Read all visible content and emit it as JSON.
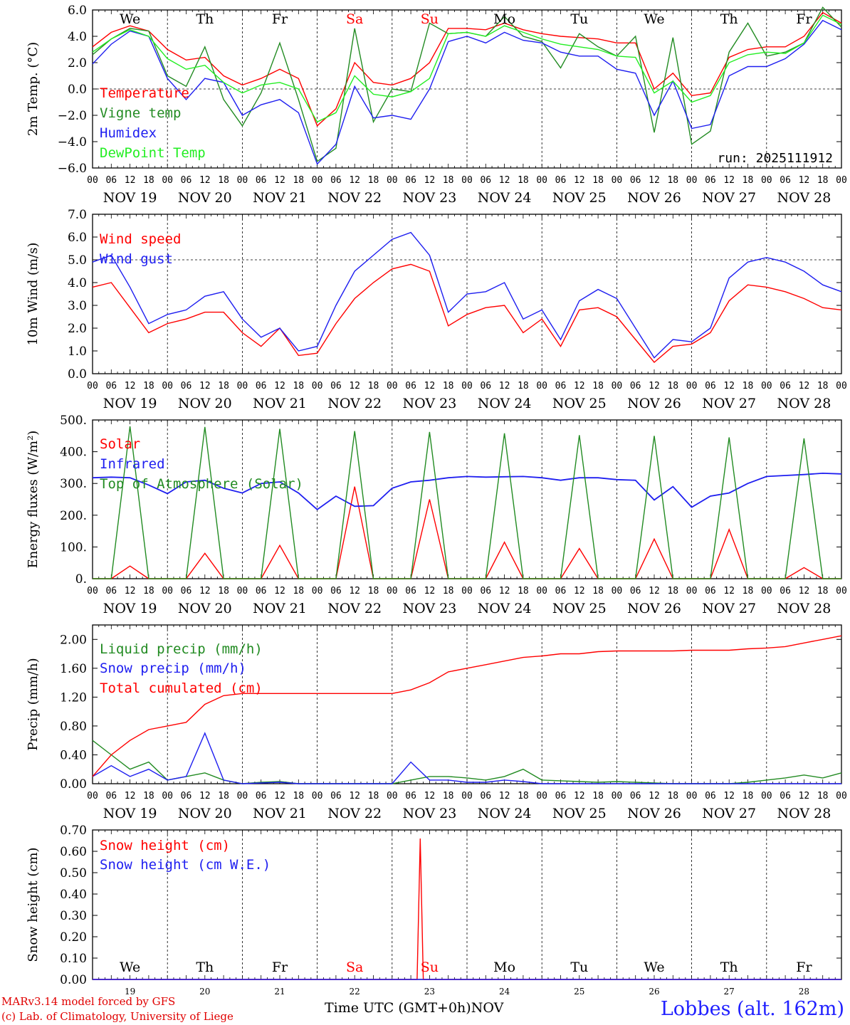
{
  "colors": {
    "red": "#ff0000",
    "green": "#228b22",
    "blue": "#1e1ef0",
    "lightgreen": "#22ee22"
  },
  "days": {
    "names": [
      "We",
      "Th",
      "Fr",
      "Sa",
      "Su",
      "Mo",
      "Tu",
      "We",
      "Th",
      "Fr"
    ],
    "weekend": [
      false,
      false,
      false,
      true,
      true,
      false,
      false,
      false,
      false,
      false
    ],
    "dates": [
      "NOV 19",
      "NOV 20",
      "NOV 21",
      "NOV 22",
      "NOV 23",
      "NOV 24",
      "NOV 25",
      "NOV 26",
      "NOV 27",
      "NOV 28"
    ],
    "numbers": [
      "19",
      "20",
      "21",
      "22",
      "23",
      "24",
      "25",
      "26",
      "27",
      "28"
    ],
    "hour_ticks": [
      "00",
      "06",
      "12",
      "18"
    ],
    "final_tick": "00"
  },
  "footer": {
    "model": "MARv3.14 model forced by GFS",
    "copyright": "(c) Lab. of Climatology, University of Liege",
    "time_label": "Time UTC (GMT+0h)",
    "month": "NOV",
    "station": "Lobbes (alt. 162m)"
  },
  "chart_data": [
    {
      "type": "line",
      "id": "temp",
      "ylabel": "2m Temp. (°C)",
      "ylim": [
        -6,
        6
      ],
      "yticks": [
        -6,
        -4,
        -2,
        0,
        2,
        4,
        6
      ],
      "ytick_labels": [
        "−6.0",
        "−4.0",
        "−2.0",
        "0.0",
        "2.0",
        "4.0",
        "6.0"
      ],
      "zero_line": 0,
      "annotation": "run: 2025111912",
      "x": [
        0,
        6,
        12,
        18,
        24,
        30,
        36,
        42,
        48,
        54,
        60,
        66,
        72,
        78,
        84,
        90,
        96,
        102,
        108,
        114,
        120,
        126,
        132,
        138,
        144,
        150,
        156,
        162,
        168,
        174,
        180,
        186,
        192,
        198,
        204,
        210,
        216,
        222,
        228,
        234,
        240
      ],
      "series": [
        {
          "name": "Temperature",
          "color": "#ff0000",
          "values": [
            3.2,
            4.3,
            4.8,
            4.4,
            3.0,
            2.2,
            2.4,
            1.0,
            0.3,
            0.8,
            1.5,
            0.8,
            -2.8,
            -1.5,
            2.0,
            0.5,
            0.3,
            0.8,
            2.0,
            4.6,
            4.6,
            4.5,
            5.0,
            4.5,
            4.2,
            4.0,
            3.9,
            3.8,
            3.5,
            3.5,
            0.0,
            1.2,
            -0.5,
            -0.3,
            2.4,
            3.0,
            3.2,
            3.2,
            4.0,
            5.8,
            5.0
          ]
        },
        {
          "name": "Vigne temp",
          "color": "#228b22",
          "values": [
            2.6,
            3.8,
            4.6,
            4.4,
            1.0,
            0.2,
            3.2,
            -0.8,
            -2.8,
            -0.3,
            3.5,
            -0.8,
            -5.5,
            -4.5,
            4.6,
            -2.5,
            0.0,
            -0.2,
            5.0,
            4.2,
            4.3,
            4.0,
            5.5,
            4.0,
            3.6,
            1.6,
            4.2,
            3.2,
            2.5,
            4.0,
            -3.3,
            3.9,
            -4.2,
            -3.2,
            2.8,
            5.0,
            2.5,
            2.8,
            3.5,
            6.2,
            4.7
          ]
        },
        {
          "name": "Humidex",
          "color": "#1e1ef0",
          "values": [
            1.9,
            3.4,
            4.4,
            4.0,
            0.8,
            -0.8,
            0.8,
            0.5,
            -2.0,
            -1.2,
            -0.8,
            -1.8,
            -5.7,
            -4.2,
            0.2,
            -2.2,
            -2.0,
            -2.3,
            0.0,
            3.6,
            4.0,
            3.5,
            4.3,
            3.7,
            3.5,
            2.8,
            2.5,
            2.5,
            1.5,
            1.2,
            -2.0,
            0.6,
            -3.0,
            -2.7,
            1.0,
            1.7,
            1.7,
            2.3,
            3.4,
            5.2,
            4.5
          ]
        },
        {
          "name": "DewPoint Temp",
          "color": "#22ee22",
          "values": [
            2.8,
            3.8,
            4.5,
            4.0,
            2.3,
            1.5,
            1.8,
            0.5,
            -0.3,
            0.3,
            0.5,
            0.0,
            -2.5,
            -1.8,
            1.0,
            -0.4,
            -0.6,
            -0.2,
            0.8,
            4.2,
            4.3,
            4.0,
            4.8,
            4.3,
            3.8,
            3.4,
            3.2,
            3.0,
            2.5,
            2.4,
            -0.3,
            0.6,
            -1.0,
            -0.5,
            2.0,
            2.6,
            2.8,
            2.7,
            3.5,
            5.6,
            4.9
          ]
        }
      ]
    },
    {
      "type": "line",
      "id": "wind",
      "ylabel": "10m Wind (m/s)",
      "ylim": [
        0,
        7
      ],
      "yticks": [
        0,
        1,
        2,
        3,
        4,
        5,
        6,
        7
      ],
      "ytick_labels": [
        "0.0",
        "1.0",
        "2.0",
        "3.0",
        "4.0",
        "5.0",
        "6.0",
        "7.0"
      ],
      "zero_line": 5,
      "x": [
        0,
        6,
        12,
        18,
        24,
        30,
        36,
        42,
        48,
        54,
        60,
        66,
        72,
        78,
        84,
        90,
        96,
        102,
        108,
        114,
        120,
        126,
        132,
        138,
        144,
        150,
        156,
        162,
        168,
        174,
        180,
        186,
        192,
        198,
        204,
        210,
        216,
        222,
        228,
        234,
        240
      ],
      "series": [
        {
          "name": "Wind speed",
          "color": "#ff0000",
          "values": [
            3.8,
            4.0,
            2.9,
            1.8,
            2.2,
            2.4,
            2.7,
            2.7,
            1.8,
            1.2,
            2.0,
            0.8,
            0.9,
            2.2,
            3.3,
            4.0,
            4.6,
            4.8,
            4.5,
            2.1,
            2.6,
            2.9,
            3.0,
            1.8,
            2.4,
            1.2,
            2.8,
            2.9,
            2.5,
            1.5,
            0.5,
            1.2,
            1.3,
            1.8,
            3.2,
            3.9,
            3.8,
            3.6,
            3.3,
            2.9,
            2.8
          ]
        },
        {
          "name": "Wind gust",
          "color": "#1e1ef0",
          "values": [
            4.9,
            5.2,
            3.8,
            2.2,
            2.6,
            2.8,
            3.4,
            3.6,
            2.4,
            1.6,
            2.0,
            1.0,
            1.2,
            3.0,
            4.5,
            5.2,
            5.9,
            6.2,
            5.2,
            2.7,
            3.5,
            3.6,
            4.0,
            2.4,
            2.8,
            1.5,
            3.2,
            3.7,
            3.3,
            2.0,
            0.7,
            1.5,
            1.4,
            2.0,
            4.2,
            4.9,
            5.1,
            4.9,
            4.5,
            3.9,
            3.6
          ]
        }
      ]
    },
    {
      "type": "line",
      "id": "energy",
      "ylabel": "Energy fluxes (W/m²)",
      "ylim": [
        0,
        500
      ],
      "yticks": [
        0,
        100,
        200,
        300,
        400,
        500
      ],
      "ytick_labels": [
        "0.",
        "100.",
        "200.",
        "300.",
        "400.",
        "500."
      ],
      "x": [
        0,
        6,
        12,
        18,
        24,
        30,
        36,
        42,
        48,
        54,
        60,
        66,
        72,
        78,
        84,
        90,
        96,
        102,
        108,
        114,
        120,
        126,
        132,
        138,
        144,
        150,
        156,
        162,
        168,
        174,
        180,
        186,
        192,
        198,
        204,
        210,
        216,
        222,
        228,
        234,
        240
      ],
      "series": [
        {
          "name": "Solar",
          "color": "#ff0000",
          "values": [
            0,
            0,
            40,
            0,
            0,
            0,
            80,
            0,
            0,
            0,
            105,
            0,
            0,
            0,
            290,
            0,
            0,
            0,
            250,
            0,
            0,
            0,
            115,
            0,
            0,
            0,
            95,
            0,
            0,
            0,
            125,
            0,
            0,
            0,
            155,
            0,
            0,
            0,
            35,
            0,
            0
          ]
        },
        {
          "name": "Infrared",
          "color": "#1e1ef0",
          "values": [
            318,
            320,
            318,
            295,
            268,
            305,
            310,
            285,
            270,
            300,
            305,
            270,
            218,
            260,
            228,
            230,
            285,
            305,
            310,
            318,
            322,
            320,
            321,
            322,
            318,
            310,
            318,
            318,
            312,
            310,
            248,
            290,
            225,
            260,
            270,
            300,
            322,
            325,
            328,
            332,
            330
          ]
        },
        {
          "name": "Top of Atmosphere (Solar)",
          "color": "#228b22",
          "values": [
            0,
            0,
            480,
            0,
            0,
            0,
            478,
            0,
            0,
            0,
            472,
            0,
            0,
            0,
            465,
            0,
            0,
            0,
            462,
            0,
            0,
            0,
            458,
            0,
            0,
            0,
            452,
            0,
            0,
            0,
            450,
            0,
            0,
            0,
            445,
            0,
            0,
            0,
            442,
            0,
            0
          ]
        }
      ]
    },
    {
      "type": "line",
      "id": "precip",
      "ylabel": "Precip (mm/h)",
      "ylim": [
        0,
        2.2
      ],
      "yticks": [
        0,
        0.4,
        0.8,
        1.2,
        1.6,
        2.0
      ],
      "ytick_labels": [
        "0.00",
        "0.40",
        "0.80",
        "1.20",
        "1.60",
        "2.00"
      ],
      "x": [
        0,
        6,
        12,
        18,
        24,
        30,
        36,
        42,
        48,
        54,
        60,
        66,
        72,
        78,
        84,
        90,
        96,
        102,
        108,
        114,
        120,
        126,
        132,
        138,
        144,
        150,
        156,
        162,
        168,
        174,
        180,
        186,
        192,
        198,
        204,
        210,
        216,
        222,
        228,
        234,
        240
      ],
      "series": [
        {
          "name": "Liquid precip (mm/h)",
          "color": "#228b22",
          "values": [
            0.6,
            0.4,
            0.2,
            0.3,
            0.05,
            0.1,
            0.15,
            0.05,
            0.0,
            0.02,
            0.03,
            0.0,
            0.0,
            0.0,
            0.0,
            0.0,
            0.0,
            0.05,
            0.1,
            0.1,
            0.08,
            0.05,
            0.1,
            0.2,
            0.05,
            0.04,
            0.03,
            0.02,
            0.03,
            0.02,
            0.01,
            0.0,
            0.0,
            0.0,
            0.0,
            0.02,
            0.05,
            0.08,
            0.12,
            0.08,
            0.15
          ]
        },
        {
          "name": "Snow precip (mm/h)",
          "color": "#1e1ef0",
          "values": [
            0.1,
            0.25,
            0.1,
            0.2,
            0.05,
            0.1,
            0.7,
            0.05,
            0.0,
            0.01,
            0.02,
            0.0,
            0.0,
            0.0,
            0.0,
            0.0,
            0.0,
            0.3,
            0.05,
            0.05,
            0.02,
            0.02,
            0.05,
            0.03,
            0.0,
            0.0,
            0.0,
            0.0,
            0.0,
            0.0,
            0.0,
            0.0,
            0.0,
            0.0,
            0.0,
            0.0,
            0.0,
            0.0,
            0.0,
            0.0,
            0.0
          ]
        },
        {
          "name": "Total cumulated (cm)",
          "color": "#ff0000",
          "values": [
            0.1,
            0.4,
            0.6,
            0.75,
            0.8,
            0.85,
            1.1,
            1.22,
            1.25,
            1.25,
            1.25,
            1.25,
            1.25,
            1.25,
            1.25,
            1.25,
            1.25,
            1.3,
            1.4,
            1.55,
            1.6,
            1.65,
            1.7,
            1.75,
            1.77,
            1.8,
            1.8,
            1.83,
            1.84,
            1.84,
            1.84,
            1.84,
            1.85,
            1.85,
            1.85,
            1.87,
            1.88,
            1.9,
            1.95,
            2.0,
            2.05
          ]
        }
      ]
    },
    {
      "type": "line",
      "id": "snow",
      "ylabel": "Snow height (cm)",
      "ylim": [
        0,
        0.7
      ],
      "yticks": [
        0,
        0.1,
        0.2,
        0.3,
        0.4,
        0.5,
        0.6,
        0.7
      ],
      "ytick_labels": [
        "0.00",
        "0.10",
        "0.20",
        "0.30",
        "0.40",
        "0.50",
        "0.60",
        "0.70"
      ],
      "x": [
        0,
        100,
        104,
        105,
        106,
        240
      ],
      "series": [
        {
          "name": "Snow height (cm)",
          "color": "#ff0000",
          "values": [
            0,
            0,
            0,
            0.66,
            0,
            0
          ]
        },
        {
          "name": "Snow height (cm W.E.)",
          "color": "#1e1ef0",
          "values": [
            0,
            0,
            0,
            0,
            0,
            0
          ]
        }
      ]
    }
  ]
}
